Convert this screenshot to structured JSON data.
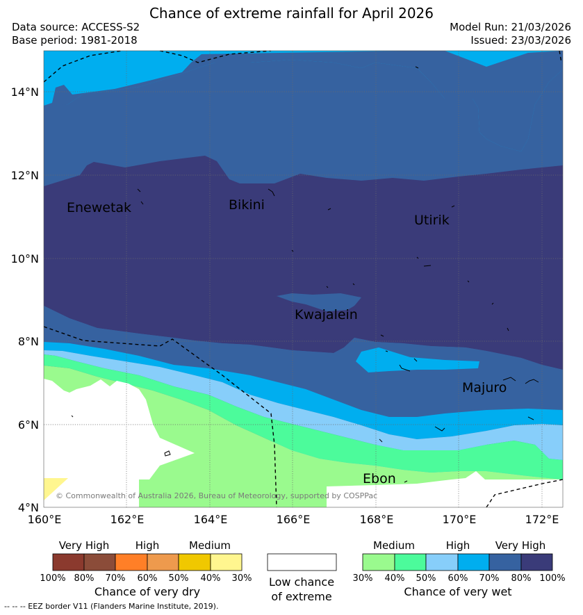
{
  "title": "Chance of extreme rainfall for April 2026",
  "data_source": "Data source: ACCESS-S2",
  "base_period": "Base period: 1981-2018",
  "model_run": "Model Run: 21/03/2026",
  "issued": "Issued: 23/03/2026",
  "map": {
    "y_ticks": [
      "14°N",
      "12°N",
      "10°N",
      "8°N",
      "6°N",
      "4°N"
    ],
    "x_ticks": [
      "160°E",
      "162°E",
      "164°E",
      "166°E",
      "168°E",
      "170°E",
      "172°E"
    ],
    "places": [
      "Enewetak",
      "Bikini",
      "Utirik",
      "Kwajalein",
      "Majuro",
      "Ebon"
    ],
    "copyright": "© Commonwealth of Australia 2026, Bureau of Meteorology, supported by COSPPac"
  },
  "colors": {
    "dry_100": "#8b3a2e",
    "dry_80": "#8b4c39",
    "dry_70": "#ff7f27",
    "dry_60": "#ee9a4d",
    "dry_50": "#f0c800",
    "dry_40": "#fff68f",
    "wet_30": "#9afa8e",
    "wet_40": "#4cfb9b",
    "wet_50": "#87cefa",
    "wet_60": "#00aeef",
    "wet_70": "#3662a0",
    "wet_80": "#3a3b79"
  },
  "legend": {
    "dry": {
      "categories": [
        "Very High",
        "High",
        "Medium"
      ],
      "percents": [
        "100%",
        "80%",
        "70%",
        "60%",
        "50%",
        "40%",
        "30%"
      ],
      "caption": "Chance of very dry"
    },
    "low": {
      "caption_line1": "Low chance",
      "caption_line2": "of extreme"
    },
    "wet": {
      "categories": [
        "Medium",
        "High",
        "Very High"
      ],
      "percents": [
        "30%",
        "40%",
        "50%",
        "60%",
        "70%",
        "80%",
        "100%"
      ],
      "caption": "Chance of very wet"
    }
  },
  "footer": "--  --  -- EEZ border V11 (Flanders Marine Institute, 2019)."
}
